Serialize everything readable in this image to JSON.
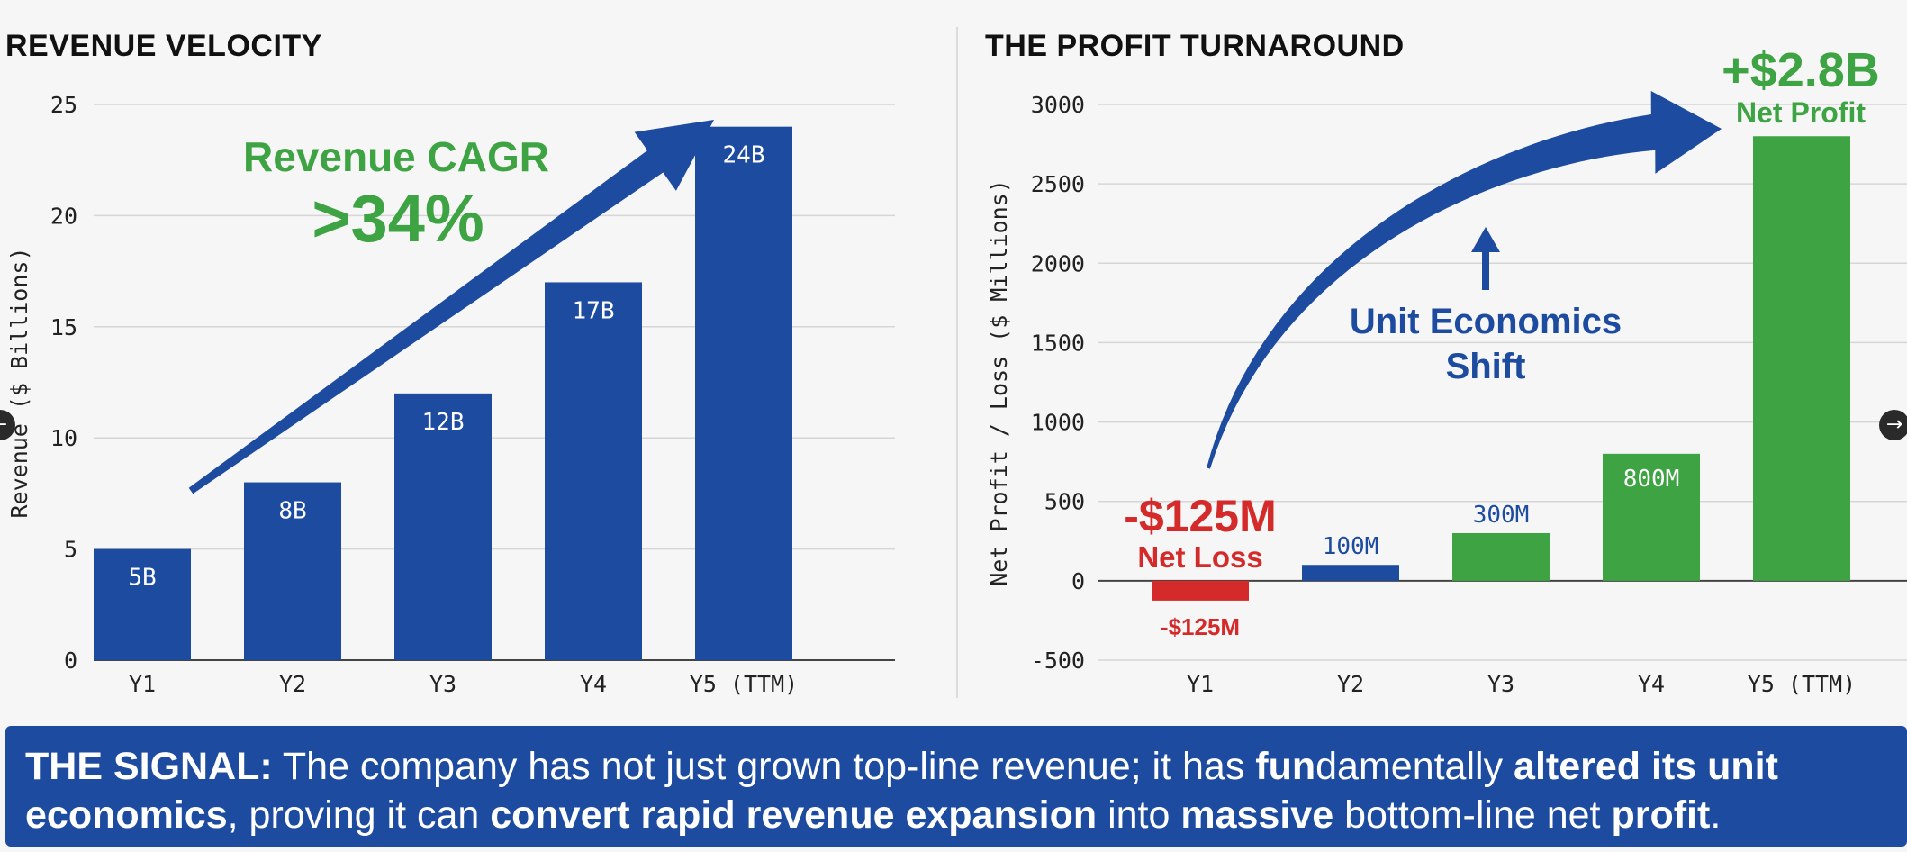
{
  "nav": {
    "prev_icon": "−",
    "next_icon": "→"
  },
  "signal": {
    "lead": "THE SIGNAL:",
    "t1": " The company has not just grown top-line revenue; it has ",
    "b1": "fun",
    "t2": "damentally ",
    "b2": "altered its unit economics",
    "t3": ", proving it can ",
    "b3": "convert rapid revenue expansion",
    "t4": " into ",
    "b4": "massive",
    "t5": " bottom-line net ",
    "b5": "profit",
    "t6": "."
  },
  "colors": {
    "blue": "#1d4ba0",
    "green": "#3ea443",
    "red": "#d42a2a",
    "grid": "#d6d6d6"
  },
  "chart_data": [
    {
      "type": "bar",
      "title": "REVENUE VELOCITY",
      "xlabel": "",
      "ylabel": "Revenue ($ Billions)",
      "categories": [
        "Y1",
        "Y2",
        "Y3",
        "Y4",
        "Y5 (TTM)"
      ],
      "values": [
        5,
        8,
        12,
        17,
        24
      ],
      "labels": [
        "5B",
        "8B",
        "12B",
        "17B",
        "24B"
      ],
      "ylim": [
        0,
        25
      ],
      "yticks": [
        0,
        5,
        10,
        15,
        20,
        25
      ],
      "grid": true,
      "annotation": {
        "line1": "Revenue CAGR",
        "line2": ">34%"
      }
    },
    {
      "type": "bar",
      "title": "THE PROFIT TURNAROUND",
      "xlabel": "",
      "ylabel": "Net Profit / Loss ($ Millions)",
      "categories": [
        "Y1",
        "Y2",
        "Y3",
        "Y4",
        "Y5 (TTM)"
      ],
      "values": [
        -125,
        100,
        300,
        800,
        2800
      ],
      "labels": [
        "-$125M",
        "100M",
        "300M",
        "800M",
        ""
      ],
      "bar_colors": [
        "red",
        "blue",
        "green",
        "green",
        "green"
      ],
      "ylim": [
        -500,
        3000
      ],
      "yticks": [
        -500,
        0,
        500,
        1000,
        1500,
        2000,
        2500,
        3000
      ],
      "grid": true,
      "annotations": {
        "loss_big": "-$125M",
        "loss_sub": "Net Loss",
        "profit_big": "+$2.8B",
        "profit_sub": "Net Profit",
        "shift_line1": "Unit Economics",
        "shift_line2": "Shift"
      }
    }
  ]
}
